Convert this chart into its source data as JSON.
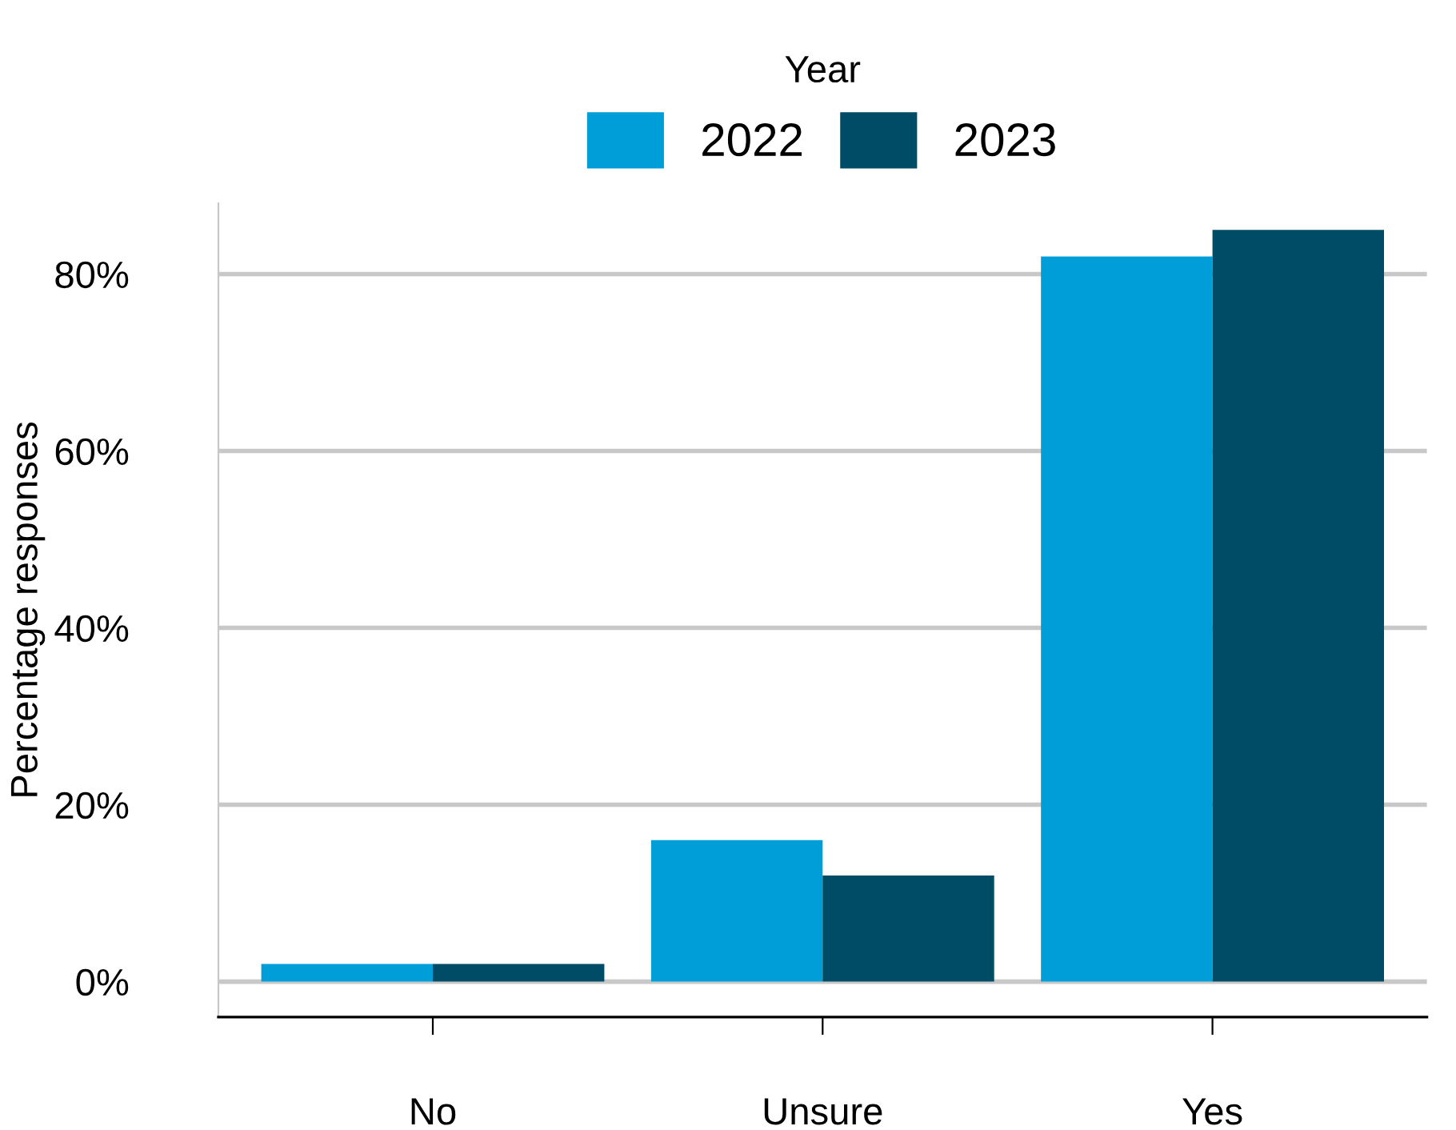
{
  "chart_data": {
    "type": "bar",
    "ylabel": "Percentage responses",
    "legend_title": "Year",
    "categories": [
      "No",
      "Unsure",
      "Yes"
    ],
    "series": [
      {
        "name": "2022",
        "color": "#009ed8",
        "values": [
          2,
          16,
          82
        ]
      },
      {
        "name": "2023",
        "color": "#004b66",
        "values": [
          2,
          12,
          85
        ]
      }
    ],
    "ylim": [
      -4,
      88
    ],
    "yticks": [
      {
        "value": 0,
        "label": "0%"
      },
      {
        "value": 20,
        "label": "20%"
      },
      {
        "value": 40,
        "label": "40%"
      },
      {
        "value": 60,
        "label": "60%"
      },
      {
        "value": 80,
        "label": "80%"
      }
    ],
    "grid": "y",
    "legend": "top"
  }
}
